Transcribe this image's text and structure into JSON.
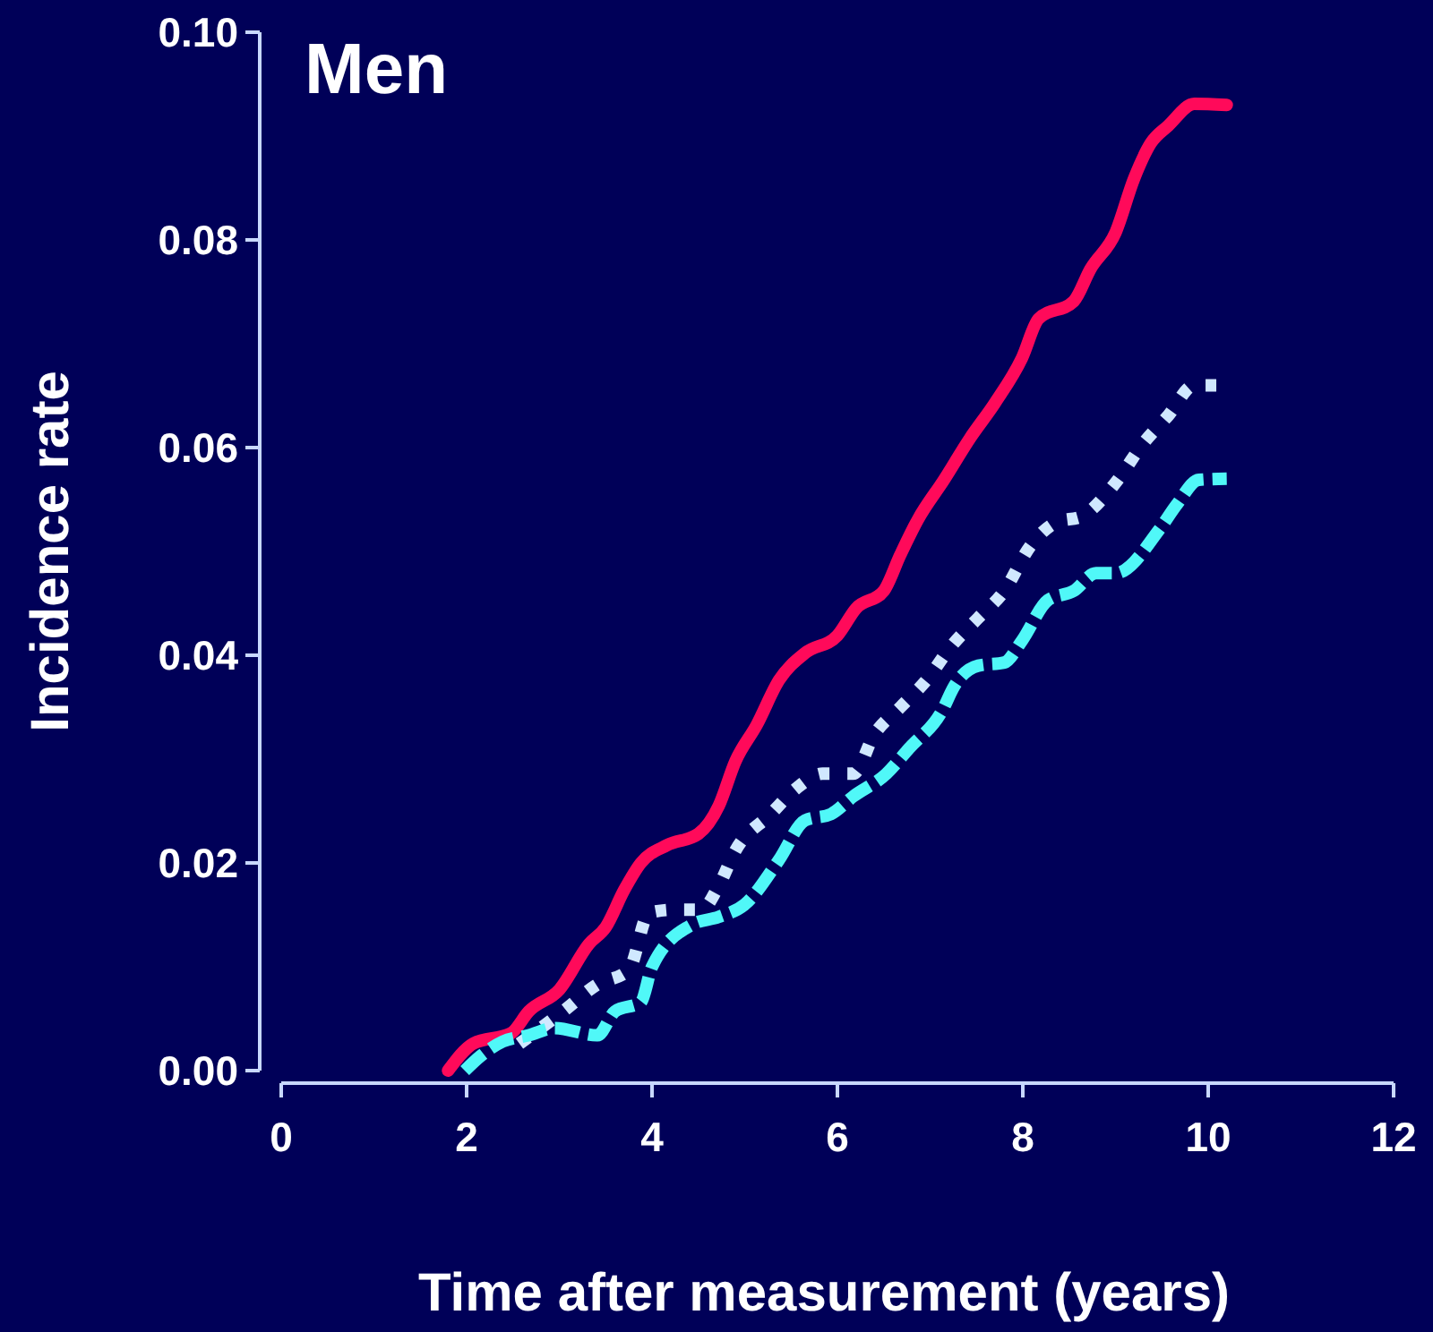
{
  "chart_data": {
    "type": "line",
    "title": "Men",
    "xlabel": "Time after measurement (years)",
    "ylabel": "Incidence rate",
    "xlim": [
      0,
      12
    ],
    "xticks": [
      0,
      2,
      4,
      6,
      8,
      10,
      12
    ],
    "ylim": [
      0,
      0.1
    ],
    "yticks": [
      {
        "value": 0,
        "label": "0.00"
      },
      {
        "value": 0.02,
        "label": "0.02"
      },
      {
        "value": 0.04,
        "label": "0.04"
      },
      {
        "value": 0.06,
        "label": "0.06"
      },
      {
        "value": 0.08,
        "label": "0.08"
      },
      {
        "value": 0.1,
        "label": "0.10"
      }
    ],
    "grid": false,
    "series": [
      {
        "color": "#ff0a5a",
        "line_style": "solid",
        "x": [
          1.8,
          2.07,
          2.48,
          2.67,
          3.0,
          3.32,
          3.5,
          3.7,
          3.88,
          4.16,
          4.5,
          4.72,
          4.9,
          5.13,
          5.37,
          5.65,
          6.0,
          6.2,
          6.5,
          6.68,
          6.87,
          7.15,
          7.43,
          7.7,
          7.99,
          8.17,
          8.55,
          8.73,
          9.0,
          9.2,
          9.38,
          9.57,
          9.85,
          10.2
        ],
        "values": [
          0.0,
          0.0026,
          0.0036,
          0.0057,
          0.0078,
          0.0122,
          0.0138,
          0.0174,
          0.02,
          0.0217,
          0.0228,
          0.0255,
          0.0298,
          0.0333,
          0.0376,
          0.0402,
          0.0419,
          0.0445,
          0.0462,
          0.0497,
          0.0531,
          0.0569,
          0.0609,
          0.0643,
          0.0686,
          0.0724,
          0.0741,
          0.0772,
          0.0807,
          0.0859,
          0.0893,
          0.091,
          0.0931,
          0.093
        ]
      },
      {
        "color": "#d0e8ff",
        "line_style": "dotted",
        "x": [
          2.57,
          3.04,
          3.41,
          3.75,
          3.97,
          4.25,
          4.53,
          4.72,
          4.9,
          5.28,
          5.56,
          5.84,
          6.17,
          6.4,
          6.68,
          6.96,
          7.24,
          7.52,
          7.8,
          8.08,
          8.36,
          8.64,
          9.0,
          9.29,
          9.57,
          9.85,
          10.2
        ],
        "values": [
          0.0026,
          0.0057,
          0.0083,
          0.0097,
          0.0152,
          0.0155,
          0.0155,
          0.0178,
          0.0212,
          0.0247,
          0.0272,
          0.0286,
          0.0286,
          0.0324,
          0.035,
          0.0376,
          0.041,
          0.0436,
          0.0462,
          0.0505,
          0.0528,
          0.0534,
          0.0566,
          0.0603,
          0.0631,
          0.066,
          0.066
        ]
      },
      {
        "color": "#50f8f8",
        "line_style": "dashed",
        "x": [
          1.98,
          2.15,
          2.39,
          2.67,
          2.95,
          3.41,
          3.6,
          3.88,
          4.0,
          4.44,
          4.72,
          5.0,
          5.37,
          5.65,
          5.93,
          6.17,
          6.53,
          6.77,
          7.15,
          7.24,
          7.52,
          7.8,
          7.99,
          8.27,
          8.55,
          8.79,
          9.0,
          9.48,
          9.66,
          9.9,
          10.2
        ],
        "values": [
          0.0,
          0.0014,
          0.0028,
          0.0034,
          0.0041,
          0.0034,
          0.0057,
          0.0066,
          0.01,
          0.0141,
          0.0148,
          0.016,
          0.0203,
          0.0241,
          0.0247,
          0.0264,
          0.0286,
          0.031,
          0.035,
          0.0367,
          0.039,
          0.0393,
          0.0414,
          0.0453,
          0.0462,
          0.0479,
          0.0479,
          0.0522,
          0.0545,
          0.0569,
          0.057
        ]
      }
    ]
  }
}
